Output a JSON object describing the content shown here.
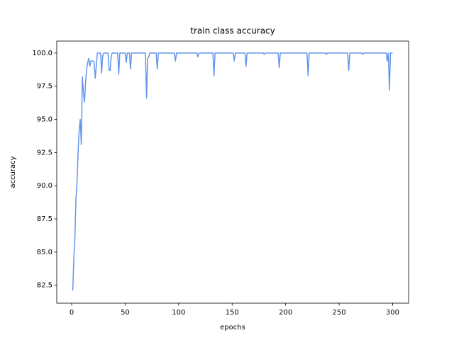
{
  "chart_data": {
    "type": "line",
    "title": "train class accuracy",
    "x_label": "epochs",
    "y_label": "accuracy",
    "x": [
      1,
      2,
      3,
      4,
      5,
      6,
      7,
      8,
      9,
      10,
      11,
      12,
      13,
      14,
      15,
      16,
      17,
      18,
      19,
      20,
      21,
      22,
      23,
      24,
      27,
      28,
      29,
      30,
      34,
      35,
      36,
      37,
      38,
      43,
      44,
      45,
      50,
      51,
      52,
      54,
      55,
      56,
      69,
      70,
      71,
      72,
      73,
      79,
      80,
      81,
      96,
      97,
      98,
      117,
      118,
      119,
      132,
      133,
      134,
      151,
      152,
      153,
      162,
      163,
      164,
      179,
      180,
      181,
      193,
      194,
      195,
      220,
      221,
      222,
      237,
      238,
      239,
      258,
      259,
      260,
      271,
      272,
      273,
      294,
      295,
      296,
      297,
      298,
      300
    ],
    "series": [
      {
        "color": "#6495ed",
        "values": [
          82.1,
          84.5,
          86,
          89,
          90.3,
          92.5,
          94.2,
          95,
          93.1,
          98.2,
          97,
          96.3,
          97.8,
          98.8,
          99.3,
          99.6,
          99,
          99.4,
          99.4,
          99.4,
          99.3,
          98.1,
          99,
          100,
          100,
          98.5,
          99.8,
          100,
          100,
          98.7,
          98.7,
          99.8,
          100,
          100,
          98.4,
          100,
          100,
          99.3,
          100,
          100,
          98.8,
          100,
          100,
          96.6,
          99.6,
          99.7,
          100,
          100,
          98.8,
          100,
          100,
          99.4,
          100,
          100,
          99.7,
          100,
          100,
          98.3,
          100,
          100,
          99.4,
          100,
          100,
          99.0,
          100,
          100,
          99.9,
          100,
          100,
          98.9,
          100,
          100,
          98.3,
          100,
          100,
          99.9,
          100,
          100,
          98.7,
          100,
          100,
          99.9,
          100,
          100,
          99.4,
          100,
          97.2,
          100,
          100
        ]
      }
    ],
    "xlim": [
      -13.95,
      314.95
    ],
    "xticks": [
      0,
      50,
      100,
      150,
      200,
      250,
      300
    ],
    "ylim": [
      81.15,
      100.9
    ],
    "yticks": [
      {
        "value": 82.5,
        "label": "82.5"
      },
      {
        "value": 85,
        "label": "85.0"
      },
      {
        "value": 87.5,
        "label": "87.5"
      },
      {
        "value": 90,
        "label": "90.0"
      },
      {
        "value": 92.5,
        "label": "92.5"
      },
      {
        "value": 95,
        "label": "95.0"
      },
      {
        "value": 97.5,
        "label": "97.5"
      },
      {
        "value": 100,
        "label": "100.0"
      }
    ]
  }
}
